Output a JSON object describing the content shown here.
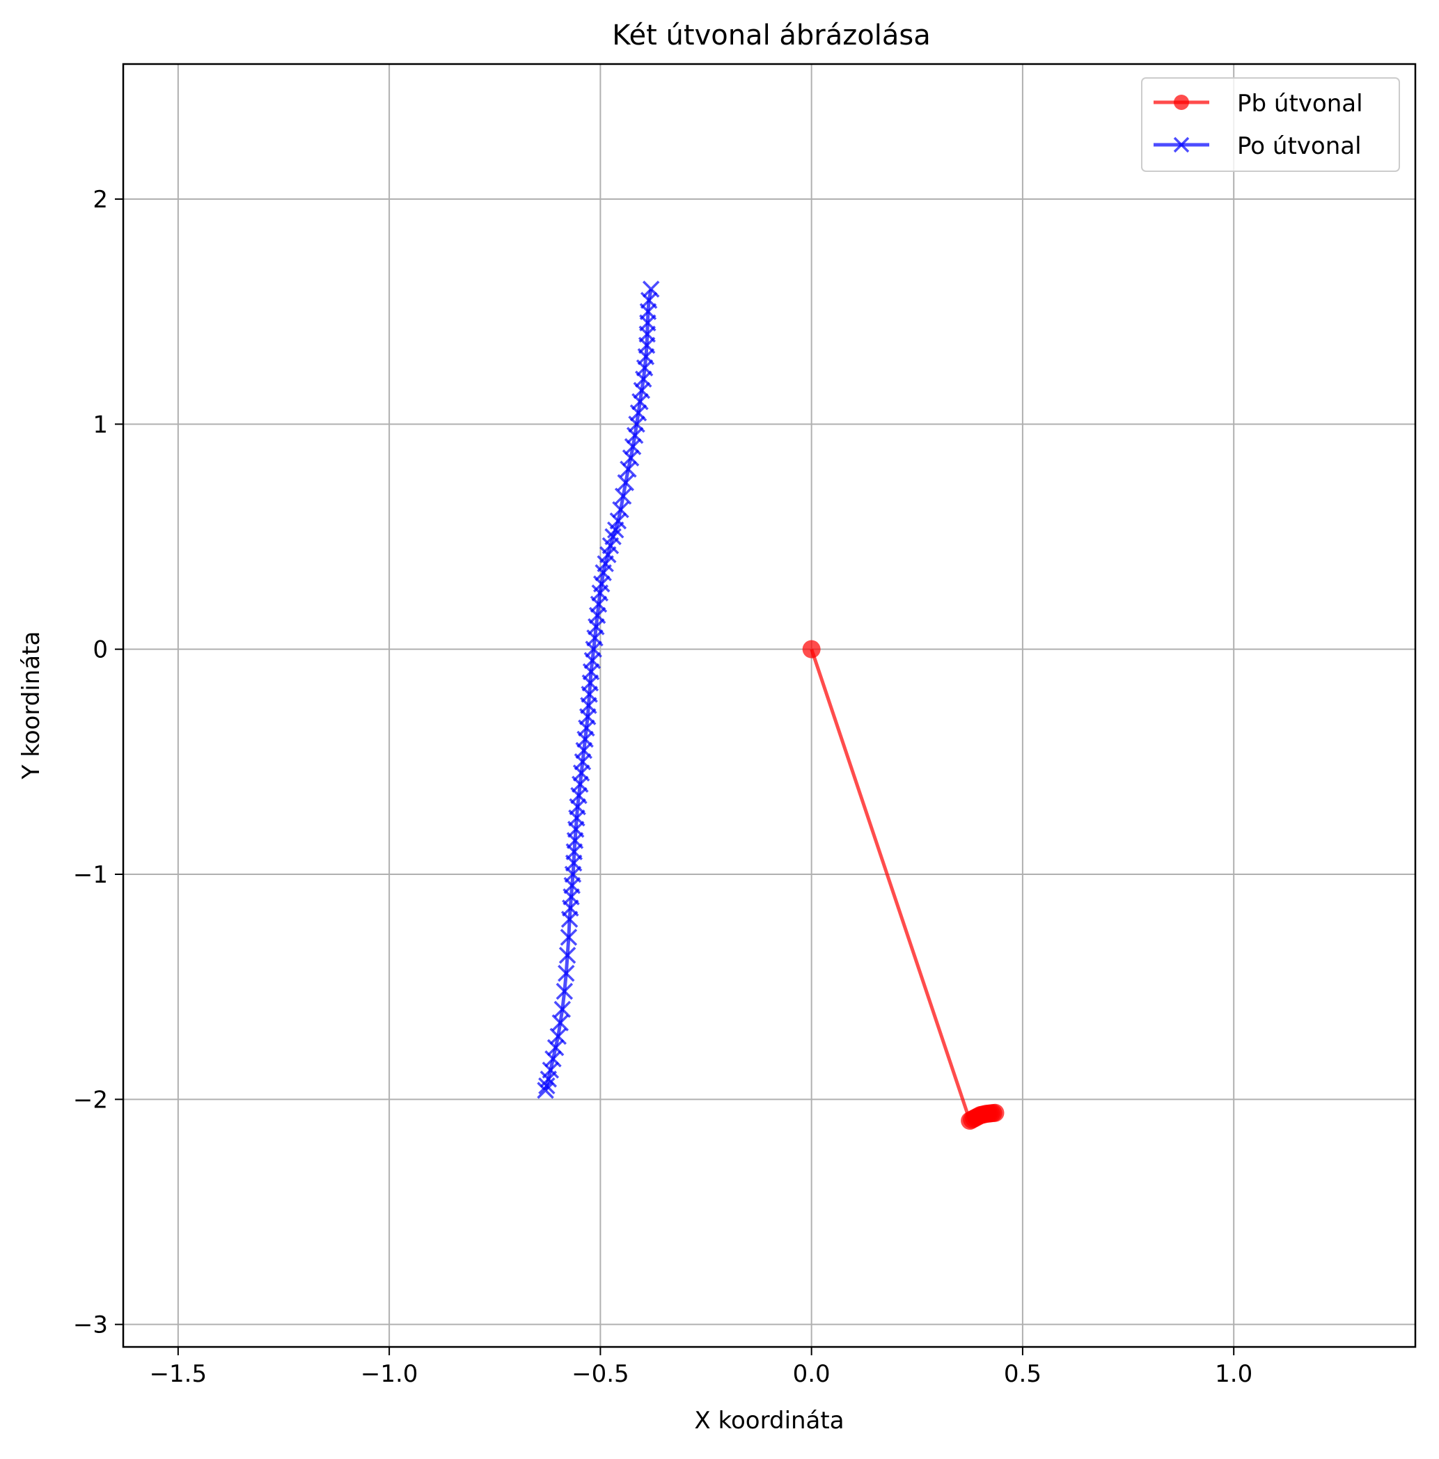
{
  "chart_data": {
    "type": "line",
    "title": "Két útvonal ábrázolása",
    "xlabel": "X koordináta",
    "ylabel": "Y koordináta",
    "xlim": [
      -1.63,
      1.43
    ],
    "ylim": [
      -3.1,
      2.6
    ],
    "xticks": [
      -1.5,
      -1.0,
      -0.5,
      0.0,
      0.5,
      1.0
    ],
    "xtick_labels": [
      "−1.5",
      "−1.0",
      "−0.5",
      "0.0",
      "0.5",
      "1.0"
    ],
    "yticks": [
      -3,
      -2,
      -1,
      0,
      1,
      2
    ],
    "ytick_labels": [
      "−3",
      "−2",
      "−1",
      "0",
      "1",
      "2"
    ],
    "grid": true,
    "legend_position": "top-right",
    "series": [
      {
        "name": "Pb útvonal",
        "color": "#ff0000",
        "marker": "circle",
        "x": [
          0.0,
          0.375,
          0.38,
          0.385,
          0.39,
          0.395,
          0.4,
          0.405,
          0.41,
          0.415,
          0.42,
          0.425,
          0.43,
          0.435
        ],
        "y": [
          0.0,
          -2.095,
          -2.09,
          -2.085,
          -2.08,
          -2.075,
          -2.07,
          -2.068,
          -2.066,
          -2.064,
          -2.063,
          -2.062,
          -2.061,
          -2.06
        ]
      },
      {
        "name": "Po útvonal",
        "color": "#0000ff",
        "marker": "x",
        "x": [
          -0.38,
          -0.385,
          -0.387,
          -0.388,
          -0.389,
          -0.39,
          -0.392,
          -0.395,
          -0.398,
          -0.402,
          -0.406,
          -0.41,
          -0.414,
          -0.418,
          -0.423,
          -0.428,
          -0.434,
          -0.44,
          -0.446,
          -0.452,
          -0.458,
          -0.464,
          -0.47,
          -0.476,
          -0.482,
          -0.488,
          -0.493,
          -0.497,
          -0.501,
          -0.504,
          -0.507,
          -0.51,
          -0.513,
          -0.516,
          -0.519,
          -0.522,
          -0.524,
          -0.526,
          -0.528,
          -0.53,
          -0.533,
          -0.536,
          -0.539,
          -0.542,
          -0.545,
          -0.548,
          -0.551,
          -0.554,
          -0.556,
          -0.558,
          -0.56,
          -0.562,
          -0.563,
          -0.565,
          -0.567,
          -0.569,
          -0.571,
          -0.573,
          -0.575,
          -0.578,
          -0.581,
          -0.585,
          -0.59,
          -0.595,
          -0.6,
          -0.606,
          -0.612,
          -0.618,
          -0.623,
          -0.627,
          -0.63
        ],
        "y": [
          1.6,
          1.55,
          1.5,
          1.45,
          1.4,
          1.35,
          1.3,
          1.25,
          1.2,
          1.15,
          1.1,
          1.05,
          1.0,
          0.95,
          0.9,
          0.85,
          0.8,
          0.74,
          0.68,
          0.62,
          0.57,
          0.53,
          0.5,
          0.46,
          0.42,
          0.38,
          0.34,
          0.29,
          0.25,
          0.2,
          0.15,
          0.1,
          0.05,
          0.0,
          -0.05,
          -0.1,
          -0.15,
          -0.2,
          -0.25,
          -0.3,
          -0.35,
          -0.4,
          -0.45,
          -0.5,
          -0.55,
          -0.6,
          -0.65,
          -0.7,
          -0.75,
          -0.8,
          -0.85,
          -0.9,
          -0.95,
          -1.0,
          -1.05,
          -1.1,
          -1.15,
          -1.2,
          -1.28,
          -1.36,
          -1.44,
          -1.52,
          -1.6,
          -1.66,
          -1.72,
          -1.77,
          -1.82,
          -1.87,
          -1.91,
          -1.94,
          -1.96
        ]
      }
    ]
  }
}
